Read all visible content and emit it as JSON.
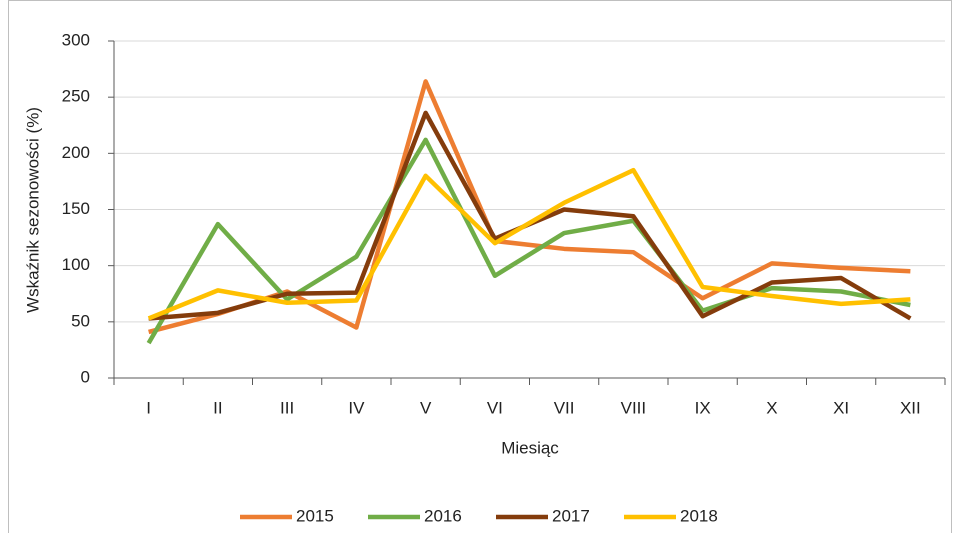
{
  "chart_data": {
    "type": "line",
    "x_label": "Miesiąc",
    "y_label": "Wskaźnik sezonowości (%)",
    "categories": [
      "I",
      "II",
      "III",
      "IV",
      "V",
      "VI",
      "VII",
      "VIII",
      "IX",
      "X",
      "XI",
      "XII"
    ],
    "series": [
      {
        "name": "2015",
        "color": "#ed7d31",
        "values": [
          41,
          57,
          77,
          45,
          264,
          122,
          115,
          112,
          71,
          102,
          98,
          95
        ]
      },
      {
        "name": "2016",
        "color": "#70ad47",
        "values": [
          31,
          137,
          70,
          108,
          212,
          91,
          129,
          140,
          60,
          80,
          77,
          65
        ]
      },
      {
        "name": "2017",
        "color": "#843c0c",
        "values": [
          53,
          58,
          75,
          76,
          236,
          124,
          150,
          144,
          55,
          85,
          89,
          53
        ]
      },
      {
        "name": "2018",
        "color": "#ffc000",
        "values": [
          53,
          78,
          67,
          69,
          180,
          120,
          156,
          185,
          81,
          73,
          66,
          70
        ]
      }
    ],
    "ylim": [
      0,
      300
    ],
    "yticks": [
      0,
      50,
      100,
      150,
      200,
      250,
      300
    ],
    "grid": true,
    "legend": "bottom"
  }
}
